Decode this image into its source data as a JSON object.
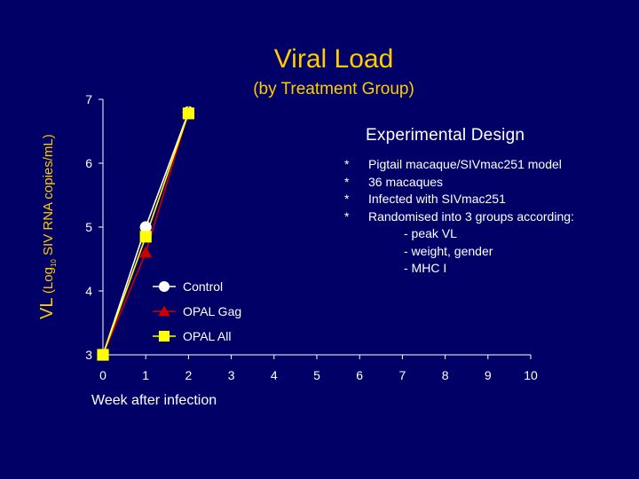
{
  "header": {
    "title": "Viral Load",
    "subtitle": "(by Treatment Group)"
  },
  "y_axis_label": {
    "main": "VL",
    "units_prefix": "(Log",
    "units_subscript": "10",
    "units_suffix": " SIV RNA copies/mL)"
  },
  "x_axis_label": "Week after infection",
  "chart_data": {
    "type": "line",
    "title": "Viral Load",
    "subtitle": "(by Treatment Group)",
    "xlabel": "Week after infection",
    "ylabel": "VL (Log10 SIV RNA copies/mL)",
    "x": [
      0,
      1,
      2
    ],
    "xlim": [
      0,
      10
    ],
    "ylim": [
      3,
      7
    ],
    "x_ticks": [
      0,
      1,
      2,
      3,
      4,
      5,
      6,
      7,
      8,
      9,
      10
    ],
    "y_ticks": [
      3,
      4,
      5,
      6,
      7
    ],
    "grid": false,
    "legend_position": "center-left",
    "series": [
      {
        "name": "Control",
        "marker": "circle",
        "color": "#ffffff",
        "values": [
          3.0,
          5.0,
          6.8
        ]
      },
      {
        "name": "OPAL Gag",
        "marker": "triangle",
        "color": "#cc0000",
        "values": [
          3.0,
          4.6,
          6.8
        ]
      },
      {
        "name": "OPAL All",
        "marker": "square",
        "color": "#ffff00",
        "values": [
          3.0,
          4.85,
          6.78
        ]
      }
    ]
  },
  "design": {
    "title": "Experimental Design",
    "bullet": "*",
    "items": [
      "Pigtail macaque/SIVmac251 model",
      "36 macaques",
      "Infected with SIVmac251",
      "Randomised into 3 groups according:"
    ],
    "subitems": [
      "- peak VL",
      "- weight, gender",
      "- MHC I"
    ]
  }
}
